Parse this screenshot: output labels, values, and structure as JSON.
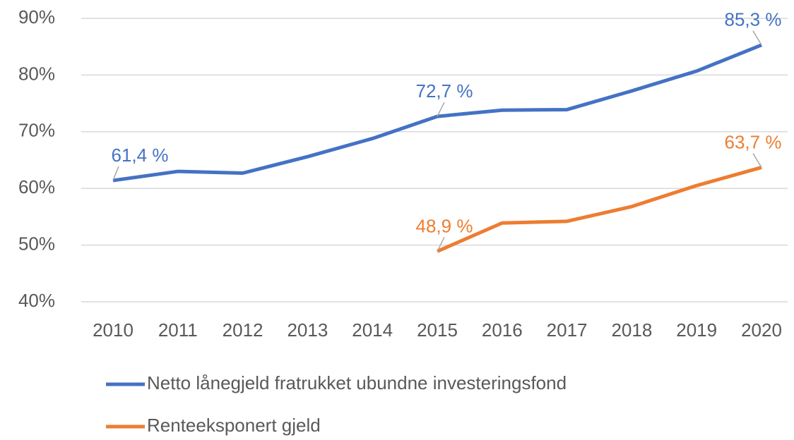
{
  "chart_data": {
    "type": "line",
    "categories": [
      "2010",
      "2011",
      "2012",
      "2013",
      "2014",
      "2015",
      "2016",
      "2017",
      "2018",
      "2019",
      "2020"
    ],
    "series": [
      {
        "name": "Netto lånegjeld fratrukket ubundne investeringsfond",
        "color": "#4472c4",
        "values": [
          61.4,
          63.0,
          62.7,
          65.6,
          68.8,
          72.7,
          73.8,
          73.9,
          77.2,
          80.7,
          85.3
        ],
        "value_labels": [
          "61,4 %",
          null,
          null,
          null,
          null,
          "72,7 %",
          null,
          null,
          null,
          null,
          "85,3 %"
        ]
      },
      {
        "name": "Renteeksponert gjeld",
        "color": "#ed7d31",
        "values": [
          null,
          null,
          null,
          null,
          null,
          48.9,
          53.9,
          54.2,
          56.8,
          60.5,
          63.7
        ],
        "value_labels": [
          null,
          null,
          null,
          null,
          null,
          "48,9 %",
          null,
          null,
          null,
          null,
          "63,7 %"
        ]
      }
    ],
    "ylim": [
      40,
      90
    ],
    "yticks": [
      {
        "value": 40,
        "label": "40%"
      },
      {
        "value": 50,
        "label": "50%"
      },
      {
        "value": 60,
        "label": "60%"
      },
      {
        "value": 70,
        "label": "70%"
      },
      {
        "value": 80,
        "label": "80%"
      },
      {
        "value": 90,
        "label": "90%"
      }
    ],
    "grid": true,
    "legend": "bottom"
  }
}
